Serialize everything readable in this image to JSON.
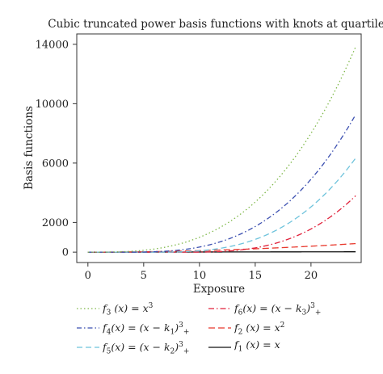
{
  "chart_data": {
    "type": "line",
    "title": "Cubic truncated power basis functions with knots at quartiles",
    "xlabel": "Exposure",
    "ylabel": "Basis functions",
    "xlim": [
      -1,
      24.5
    ],
    "ylim": [
      -700,
      14700
    ],
    "x_ticks": [
      {
        "value": 0,
        "label": "0"
      },
      {
        "value": 5,
        "label": "5"
      },
      {
        "value": 10,
        "label": "10"
      },
      {
        "value": 15,
        "label": "15"
      },
      {
        "value": 20,
        "label": "20"
      }
    ],
    "y_ticks": [
      {
        "value": 0,
        "label": "0"
      },
      {
        "value": 2000,
        "label": "2000"
      },
      {
        "value": 6000,
        "label": "6000"
      },
      {
        "value": 10000,
        "label": "10000"
      },
      {
        "value": 14000,
        "label": "14000"
      }
    ],
    "grid": false,
    "legend_position": "bottom",
    "x_range": [
      0,
      24
    ],
    "series": [
      {
        "name": "f3(x) = x^3",
        "legend_html": "f<sub>3</sub> (x) = x<sup>3</sup>",
        "color": "#7fb84a",
        "dash": "1.5,3",
        "kind": "power",
        "exp": 3,
        "knot": 0
      },
      {
        "name": "f4(x) = (x − k1)^3_+",
        "legend_html": "f<sub>4</sub>(x) = (x − k<sub>1</sub>)<sup>3</sup><sub>+</sub>",
        "color": "#3b4fb0",
        "dash": "6,3,1.5,3",
        "kind": "power",
        "exp": 3,
        "knot": 3
      },
      {
        "name": "f5(x) = (x − k2)^3_+",
        "legend_html": "f<sub>5</sub>(x) = (x − k<sub>2</sub>)<sup>3</sup><sub>+</sub>",
        "color": "#6ec3dc",
        "dash": "7,4",
        "kind": "power",
        "exp": 3,
        "knot": 5.5
      },
      {
        "name": "f6(x) = (x − k3)^3_+",
        "legend_html": "f<sub>6</sub>(x) = (x − k<sub>3</sub>)<sup>3</sup><sub>+</sub>",
        "color": "#e0203a",
        "dash": "7,3,1.5,3",
        "kind": "power",
        "exp": 3,
        "knot": 8.4
      },
      {
        "name": "f2(x) = x^2",
        "legend_html": "f<sub>2</sub> (x) = x<sup>2</sup>",
        "color": "#e8382c",
        "dash": "8,4",
        "kind": "power",
        "exp": 2,
        "knot": 0
      },
      {
        "name": "f1(x) = x",
        "legend_html": "f<sub>1</sub> (x) = x",
        "color": "#111111",
        "dash": "",
        "kind": "power",
        "exp": 1,
        "knot": 0
      }
    ]
  }
}
